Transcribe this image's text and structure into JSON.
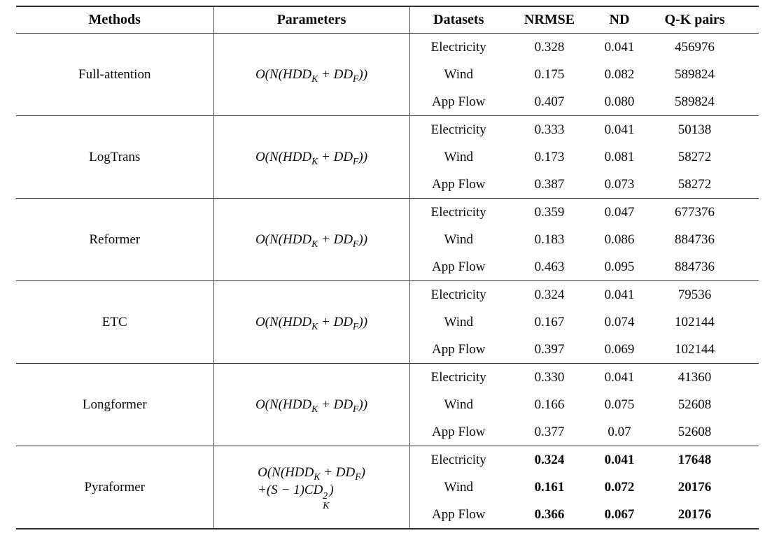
{
  "header": {
    "methods": "Methods",
    "parameters": "Parameters",
    "datasets": "Datasets",
    "nrmse": "NRMSE",
    "nd": "ND",
    "qk_pairs": "Q-K pairs"
  },
  "formulas": {
    "std": {
      "p0": "O(N(HDD",
      "s1": "K",
      "p1": " + DD",
      "s2": "F",
      "p2": "))"
    },
    "pyra1": {
      "p0": "O(N(HDD",
      "s1": "K",
      "p1": " + DD",
      "s2": "F",
      "p2": ")"
    },
    "pyra2": {
      "p0": "+(S − 1)CD",
      "sup": "2",
      "sub": "K",
      "p1": ")"
    }
  },
  "blocks": [
    {
      "method": "Full-attention",
      "rows": [
        [
          "Electricity",
          "0.328",
          "0.041",
          "456976"
        ],
        [
          "Wind",
          "0.175",
          "0.082",
          "589824"
        ],
        [
          "App Flow",
          "0.407",
          "0.080",
          "589824"
        ]
      ]
    },
    {
      "method": "LogTrans",
      "rows": [
        [
          "Electricity",
          "0.333",
          "0.041",
          "50138"
        ],
        [
          "Wind",
          "0.173",
          "0.081",
          "58272"
        ],
        [
          "App Flow",
          "0.387",
          "0.073",
          "58272"
        ]
      ]
    },
    {
      "method": "Reformer",
      "rows": [
        [
          "Electricity",
          "0.359",
          "0.047",
          "677376"
        ],
        [
          "Wind",
          "0.183",
          "0.086",
          "884736"
        ],
        [
          "App Flow",
          "0.463",
          "0.095",
          "884736"
        ]
      ]
    },
    {
      "method": "ETC",
      "rows": [
        [
          "Electricity",
          "0.324",
          "0.041",
          "79536"
        ],
        [
          "Wind",
          "0.167",
          "0.074",
          "102144"
        ],
        [
          "App Flow",
          "0.397",
          "0.069",
          "102144"
        ]
      ]
    },
    {
      "method": "Longformer",
      "rows": [
        [
          "Electricity",
          "0.330",
          "0.041",
          "41360"
        ],
        [
          "Wind",
          "0.166",
          "0.075",
          "52608"
        ],
        [
          "App Flow",
          "0.377",
          "0.07",
          "52608"
        ]
      ]
    },
    {
      "method": "Pyraformer",
      "rows": [
        [
          "Electricity",
          "0.324",
          "0.041",
          "17648"
        ],
        [
          "Wind",
          "0.161",
          "0.072",
          "20176"
        ],
        [
          "App Flow",
          "0.366",
          "0.067",
          "20176"
        ]
      ]
    }
  ],
  "colors": {
    "text": "#0a0a0a",
    "rule": "#2f2f2f"
  }
}
